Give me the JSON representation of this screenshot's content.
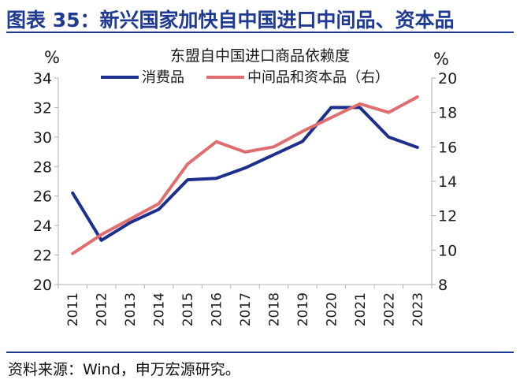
{
  "figure_title": "图表 35：新兴国家加快自中国进口中间品、资本品",
  "source_note": "资料来源：Wind，申万宏源研究。",
  "colors": {
    "consumer": "#1c2f8c",
    "intermediate": "#e06e6e",
    "accent": "#1f3a93"
  },
  "chart_data": {
    "type": "line",
    "title": "东盟自中国进口商品依赖度",
    "y_left_label": "%",
    "y_right_label": "%",
    "x": [
      "2011",
      "2012",
      "2013",
      "2014",
      "2015",
      "2016",
      "2017",
      "2018",
      "2019",
      "2020",
      "2021",
      "2022",
      "2023"
    ],
    "y_left_lim": [
      20,
      34
    ],
    "y_left_ticks": [
      20,
      22,
      24,
      26,
      28,
      30,
      32,
      34
    ],
    "y_right_lim": [
      8,
      20
    ],
    "y_right_ticks": [
      8,
      10,
      12,
      14,
      16,
      18,
      20
    ],
    "legend_position": "top",
    "grid": false,
    "series": [
      {
        "name": "消费品",
        "axis": "left",
        "values": [
          26.2,
          23.0,
          24.2,
          25.1,
          27.1,
          27.2,
          27.9,
          28.8,
          29.7,
          32.0,
          32.0,
          30.0,
          29.3
        ]
      },
      {
        "name": "中间品和资本品（右）",
        "axis": "right",
        "values": [
          9.8,
          10.9,
          11.8,
          12.7,
          15.0,
          16.3,
          15.7,
          16.0,
          16.9,
          17.7,
          18.5,
          18.0,
          18.9
        ]
      }
    ]
  }
}
